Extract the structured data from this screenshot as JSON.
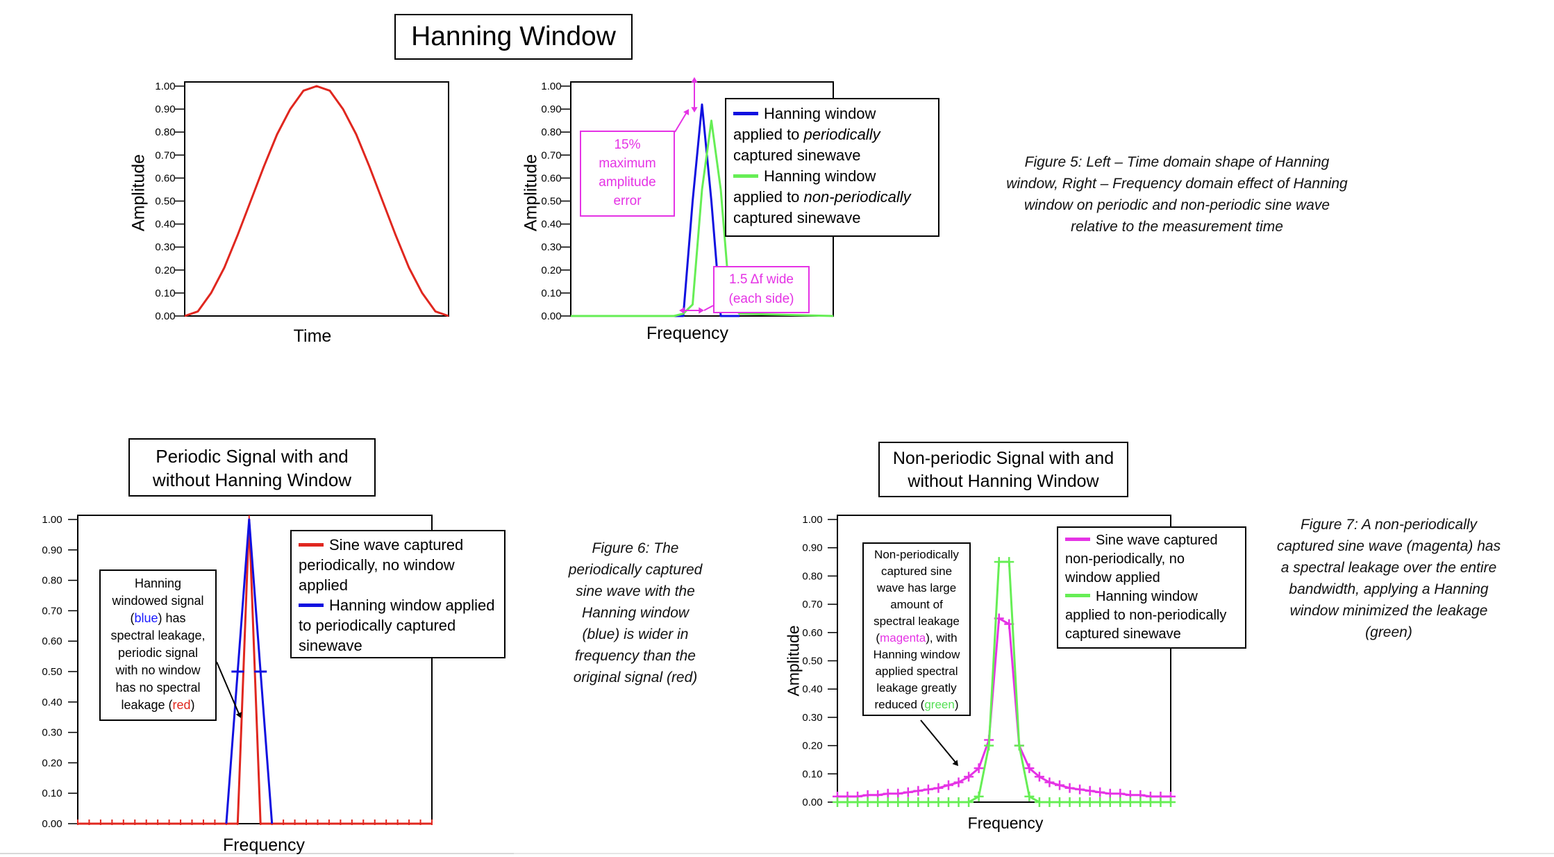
{
  "colors": {
    "red": "#e0271f",
    "blue": "#1010e0",
    "green": "#66ee55",
    "magenta": "#e533e5"
  },
  "hanning": {
    "title": "Hanning Window",
    "left_xlabel": "Time",
    "left_ylabel": "Amplitude",
    "right_xlabel": "Frequency",
    "right_ylabel": "Amplitude",
    "legend": {
      "blue_l1": "Hanning window",
      "blue_l2a": "applied to ",
      "blue_l2b": "periodically",
      "blue_l3": "captured sinewave",
      "green_l1": "Hanning window",
      "green_l2a": "applied to ",
      "green_l2b": "non-periodically",
      "green_l3": "captured sinewave"
    },
    "note_error": [
      "15%",
      "maximum",
      "amplitude",
      "error"
    ],
    "note_wide": [
      "1.5 Δf wide",
      "(each side)"
    ]
  },
  "periodic": {
    "title_l1": "Periodic Signal with and",
    "title_l2": "without Hanning Window",
    "xlabel": "Frequency",
    "legend": {
      "red_l1": "Sine wave captured",
      "red_l2": "periodically, no window",
      "red_l3": "applied",
      "blue_l1": "Hanning window applied",
      "blue_l2": "to periodically captured",
      "blue_l3": "sinewave"
    },
    "note": {
      "l1": "Hanning",
      "l2": "windowed signal",
      "l3a": "(",
      "l3b": "blue",
      "l3c": ") has",
      "l4": "spectral leakage,",
      "l5": "periodic signal",
      "l6": "with no window",
      "l7": "has no spectral",
      "l8a": "leakage (",
      "l8b": "red",
      "l8c": ")"
    }
  },
  "nonperiodic": {
    "title_l1": "Non-periodic Signal with and",
    "title_l2": "without Hanning Window",
    "xlabel": "Frequency",
    "ylabel": "Amplitude",
    "legend": {
      "mag_l1": "Sine wave captured",
      "mag_l2": "non-periodically, no",
      "mag_l3": "window applied",
      "green_l1": "Hanning window",
      "green_l2": "applied to non-periodically",
      "green_l3": "captured sinewave"
    },
    "note": {
      "l1": "Non-periodically",
      "l2": "captured sine",
      "l3": "wave has large",
      "l4": "amount of",
      "l5": "spectral leakage",
      "l6a": "(",
      "l6b": "magenta",
      "l6c": "), with",
      "l7": "Hanning window",
      "l8": "applied spectral",
      "l9": "leakage greatly",
      "l10a": "reduced (",
      "l10b": "green",
      "l10c": ")"
    }
  },
  "captions": {
    "fig5": [
      "Figure 5: Left – Time domain shape of Hanning",
      "window, Right – Frequency domain effect of Hanning",
      "window on periodic and non-periodic sine wave",
      "relative to the measurement time"
    ],
    "fig6": [
      "Figure 6: The",
      "periodically captured",
      "sine wave with the",
      "Hanning window",
      "(blue) is wider in",
      "frequency than the",
      "original signal (red)"
    ],
    "fig7": [
      "Figure 7: A non-periodically",
      "captured sine wave (magenta) has",
      "a spectral leakage over the entire",
      "bandwidth, applying a Hanning",
      "window minimized the leakage",
      "(green)"
    ]
  },
  "chart_data": [
    {
      "id": "hanning-time",
      "type": "line",
      "xlabel": "Time",
      "ylabel": "Amplitude",
      "ylim": [
        0,
        1
      ],
      "yticks": [
        "0.00",
        "0.10",
        "0.20",
        "0.30",
        "0.40",
        "0.50",
        "0.60",
        "0.70",
        "0.80",
        "0.90",
        "1.00"
      ],
      "series": [
        {
          "color": "#e0271f",
          "x": [
            0,
            0.05,
            0.1,
            0.15,
            0.2,
            0.25,
            0.3,
            0.35,
            0.4,
            0.45,
            0.5,
            0.55,
            0.6,
            0.65,
            0.7,
            0.75,
            0.8,
            0.85,
            0.9,
            0.95,
            1.0
          ],
          "y": [
            0.0,
            0.02,
            0.1,
            0.21,
            0.35,
            0.5,
            0.65,
            0.79,
            0.9,
            0.98,
            1.0,
            0.98,
            0.9,
            0.79,
            0.65,
            0.5,
            0.35,
            0.21,
            0.1,
            0.02,
            0.0
          ]
        }
      ]
    },
    {
      "id": "hanning-freq",
      "type": "line",
      "xlabel": "Frequency",
      "ylabel": "Amplitude",
      "ylim": [
        0,
        1
      ],
      "yticks": [
        "0.00",
        "0.10",
        "0.20",
        "0.30",
        "0.40",
        "0.50",
        "0.60",
        "0.70",
        "0.80",
        "0.90",
        "1.00"
      ],
      "series": [
        {
          "name": "Hanning window applied to periodically captured sinewave",
          "color": "#1010e0",
          "x": [
            -4,
            -3,
            -2,
            -1,
            0,
            1,
            2,
            3,
            4
          ],
          "y": [
            0,
            0,
            0,
            0.5,
            0.92,
            0.5,
            0,
            0,
            0
          ]
        },
        {
          "name": "Hanning window applied to non-periodically captured sinewave",
          "color": "#66ee55",
          "x": [
            -14,
            -4,
            -3,
            -2,
            -1,
            0,
            1,
            2,
            3,
            4,
            14
          ],
          "y": [
            0,
            0,
            0,
            0.01,
            0.05,
            0.55,
            0.85,
            0.55,
            0.05,
            0.01,
            0
          ]
        }
      ]
    },
    {
      "id": "periodic",
      "type": "line",
      "xlabel": "Frequency",
      "ylim": [
        0,
        1
      ],
      "yticks": [
        "0.00",
        "0.10",
        "0.20",
        "0.30",
        "0.40",
        "0.50",
        "0.60",
        "0.70",
        "0.80",
        "0.90",
        "1.00"
      ],
      "series": [
        {
          "name": "Sine wave captured periodically, no window applied",
          "color": "#e0271f",
          "x": [
            -15,
            -14,
            -13,
            -12,
            -11,
            -10,
            -9,
            -8,
            -7,
            -6,
            -5,
            -4,
            -3,
            -2,
            -1,
            0,
            1,
            2,
            3,
            4,
            5,
            6,
            7,
            8,
            9,
            10,
            11,
            12,
            13,
            14,
            15,
            16
          ],
          "y": [
            0,
            0,
            0,
            0,
            0,
            0,
            0,
            0,
            0,
            0,
            0,
            0,
            0,
            0,
            0,
            1.0,
            0,
            0,
            0,
            0,
            0,
            0,
            0,
            0,
            0,
            0,
            0,
            0,
            0,
            0,
            0,
            0
          ]
        },
        {
          "name": "Hanning window applied to periodically captured sinewave",
          "color": "#1010e0",
          "x": [
            -2,
            -1,
            0,
            1,
            2
          ],
          "y": [
            0,
            0.5,
            1.0,
            0.5,
            0
          ]
        }
      ]
    },
    {
      "id": "nonperiodic",
      "type": "line",
      "xlabel": "Frequency",
      "ylabel": "Amplitude",
      "ylim": [
        0,
        1
      ],
      "yticks": [
        "0.00",
        "0.10",
        "0.20",
        "0.30",
        "0.40",
        "0.50",
        "0.60",
        "0.70",
        "0.80",
        "0.90",
        "1.00"
      ],
      "series": [
        {
          "name": "Sine wave captured non-periodically, no window applied",
          "color": "#e533e5",
          "x": [
            -16,
            -15,
            -14,
            -13,
            -12,
            -11,
            -10,
            -9,
            -8,
            -7,
            -6,
            -5,
            -4,
            -3,
            -2,
            -1,
            0,
            1,
            2,
            3,
            4,
            5,
            6,
            7,
            8,
            9,
            10,
            11,
            12,
            13,
            14,
            15,
            16,
            17
          ],
          "y": [
            0.02,
            0.02,
            0.02,
            0.025,
            0.025,
            0.03,
            0.03,
            0.035,
            0.04,
            0.045,
            0.05,
            0.06,
            0.07,
            0.09,
            0.12,
            0.22,
            0.65,
            0.63,
            0.2,
            0.12,
            0.09,
            0.07,
            0.06,
            0.05,
            0.045,
            0.04,
            0.035,
            0.03,
            0.03,
            0.025,
            0.025,
            0.02,
            0.02,
            0.02
          ]
        },
        {
          "name": "Hanning window applied to non-periodically captured sinewave",
          "color": "#66ee55",
          "x": [
            -16,
            -15,
            -14,
            -13,
            -12,
            -11,
            -10,
            -9,
            -8,
            -7,
            -6,
            -5,
            -4,
            -3,
            -2,
            -1,
            0,
            1,
            2,
            3,
            4,
            5,
            6,
            7,
            8,
            9,
            10,
            11,
            12,
            13,
            14,
            15,
            16,
            17
          ],
          "y": [
            0,
            0,
            0,
            0,
            0,
            0,
            0,
            0,
            0,
            0,
            0,
            0,
            0,
            0,
            0.02,
            0.2,
            0.85,
            0.85,
            0.2,
            0.02,
            0,
            0,
            0,
            0,
            0,
            0,
            0,
            0,
            0,
            0,
            0,
            0,
            0,
            0
          ]
        }
      ]
    }
  ]
}
